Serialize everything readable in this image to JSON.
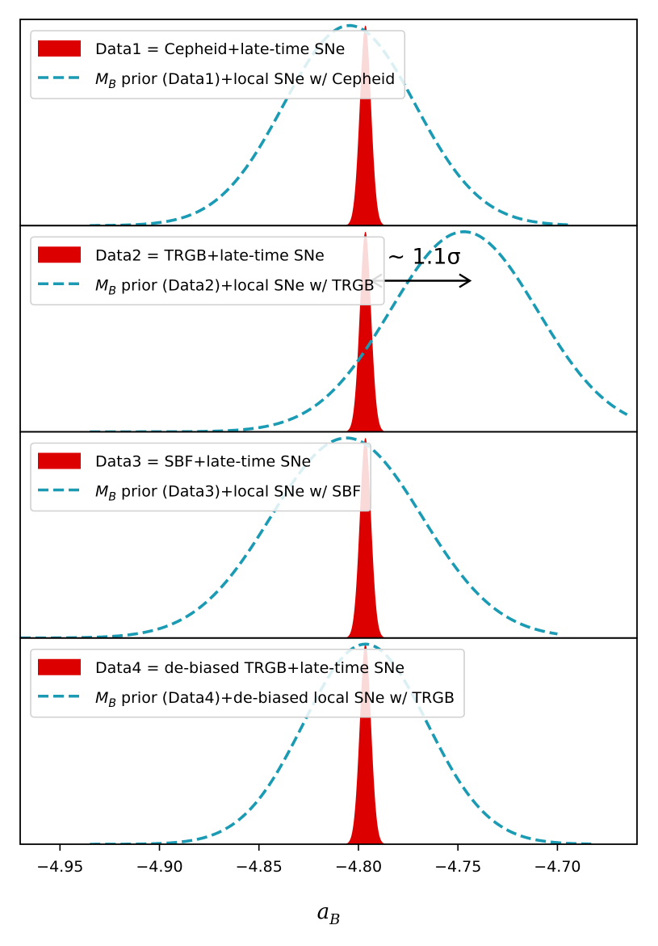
{
  "chart_data": {
    "type": "area",
    "xlabel_main": "a",
    "xlabel_sub": "B",
    "xlim": [
      -4.97,
      -4.66
    ],
    "x_ticks": [
      -4.95,
      -4.9,
      -4.85,
      -4.8,
      -4.75,
      -4.7
    ],
    "x_tick_labels": [
      "−4.95",
      "−4.90",
      "−4.85",
      "−4.80",
      "−4.75",
      "−4.70"
    ],
    "colors": {
      "filled": "#dd0000",
      "dashed": "#1a9bb3"
    },
    "panels": [
      {
        "filled_label": "Data1 = Cepheid+late-time SNe",
        "dashed_label_pre": "M",
        "dashed_label_sub": "B",
        "dashed_label_post": " prior (Data1)+local SNe w/ Cepheid",
        "filled": {
          "mean": -4.7965,
          "sigma": 0.0028,
          "peak": 0.98
        },
        "dashed": {
          "mean": -4.8045,
          "sigma": 0.033,
          "peak": 0.98,
          "xmin": -4.935,
          "xmax": -4.693
        }
      },
      {
        "filled_label": "Data2 = TRGB+late-time SNe",
        "dashed_label_pre": "M",
        "dashed_label_sub": "B",
        "dashed_label_post": " prior (Data2)+local SNe w/ TRGB",
        "filled": {
          "mean": -4.7965,
          "sigma": 0.0028,
          "peak": 0.98
        },
        "dashed": {
          "mean": -4.747,
          "sigma": 0.037,
          "peak": 0.98,
          "xmin": -4.935,
          "xmax": -4.665
        },
        "annotation": {
          "text": "∼ 1.1σ",
          "from_x": -4.7935,
          "to_x": -4.744,
          "y": 0.74
        }
      },
      {
        "filled_label": "Data3 = SBF+late-time SNe",
        "dashed_label_pre": "M",
        "dashed_label_sub": "B",
        "dashed_label_post": " prior (Data3)+local SNe w/ SBF",
        "filled": {
          "mean": -4.7965,
          "sigma": 0.0028,
          "peak": 0.98
        },
        "dashed": {
          "mean": -4.806,
          "sigma": 0.038,
          "peak": 0.98,
          "xmin": -4.97,
          "xmax": -4.7
        }
      },
      {
        "filled_label": "Data4 = de-biased TRGB+late-time SNe",
        "dashed_label_pre": "M",
        "dashed_label_sub": "B",
        "dashed_label_post": " prior (Data4)+de-biased local SNe w/ TRGB",
        "filled": {
          "mean": -4.7965,
          "sigma": 0.0028,
          "peak": 0.98
        },
        "dashed": {
          "mean": -4.7965,
          "sigma": 0.031,
          "peak": 0.98,
          "xmin": -4.935,
          "xmax": -4.683
        }
      }
    ]
  }
}
